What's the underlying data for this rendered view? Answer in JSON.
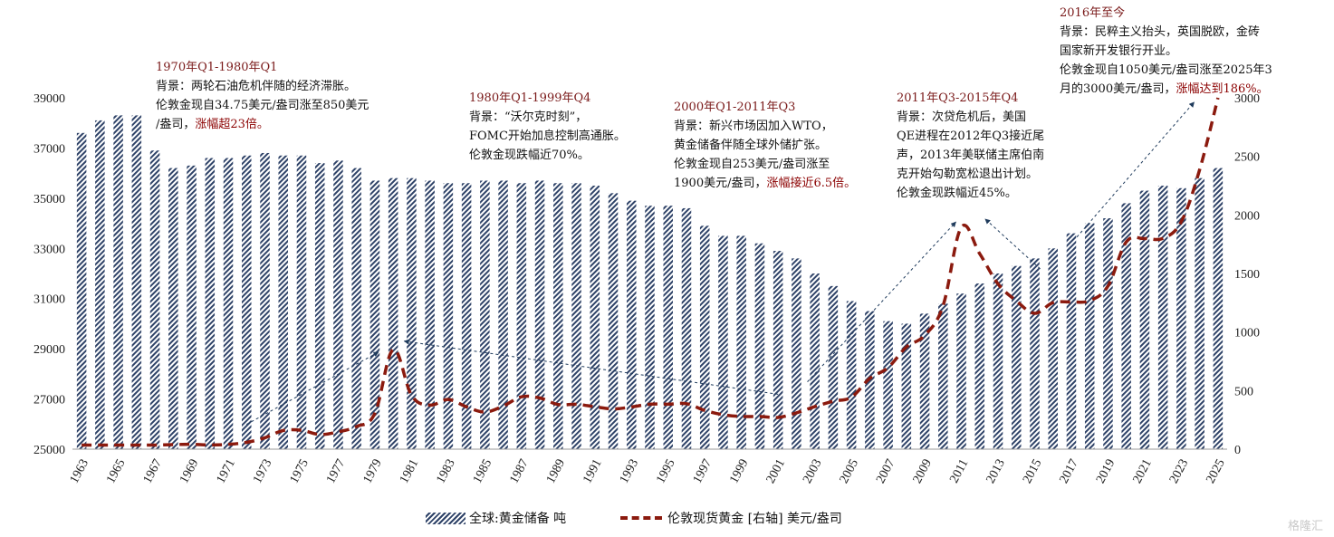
{
  "chart_data": {
    "type": "bar+line",
    "categories": [
      1963,
      1964,
      1965,
      1966,
      1967,
      1968,
      1969,
      1970,
      1971,
      1972,
      1973,
      1974,
      1975,
      1976,
      1977,
      1978,
      1979,
      1980,
      1981,
      1982,
      1983,
      1984,
      1985,
      1986,
      1987,
      1988,
      1989,
      1990,
      1991,
      1992,
      1993,
      1994,
      1995,
      1996,
      1997,
      1998,
      1999,
      2000,
      2001,
      2002,
      2003,
      2004,
      2005,
      2006,
      2007,
      2008,
      2009,
      2010,
      2011,
      2012,
      2013,
      2014,
      2015,
      2016,
      2017,
      2018,
      2019,
      2020,
      2021,
      2022,
      2023,
      2024,
      2025
    ],
    "x_tick_labels": [
      "1963",
      "1965",
      "1967",
      "1969",
      "1971",
      "1973",
      "1975",
      "1977",
      "1979",
      "1981",
      "1983",
      "1985",
      "1987",
      "1989",
      "1991",
      "1993",
      "1995",
      "1997",
      "1999",
      "2001",
      "2003",
      "2005",
      "2007",
      "2009",
      "2011",
      "2013",
      "2015",
      "2017",
      "2019",
      "2021",
      "2023",
      "2025"
    ],
    "left_axis": {
      "ylim": [
        25000,
        39000
      ],
      "ticks": [
        25000,
        27000,
        29000,
        31000,
        33000,
        35000,
        37000,
        39000
      ]
    },
    "right_axis": {
      "ylim": [
        0,
        3000
      ],
      "ticks": [
        0,
        500,
        1000,
        1500,
        2000,
        2500,
        3000
      ]
    },
    "series": [
      {
        "name": "全球:黄金储备 吨",
        "axis": "left",
        "style": "hatched-bar",
        "color": "#2f4368",
        "values": [
          37600,
          38100,
          38300,
          38300,
          36900,
          36200,
          36300,
          36600,
          36600,
          36700,
          36800,
          36700,
          36700,
          36400,
          36500,
          36200,
          35700,
          35800,
          35800,
          35700,
          35600,
          35600,
          35700,
          35700,
          35600,
          35700,
          35600,
          35600,
          35500,
          35200,
          34900,
          34700,
          34700,
          34600,
          33900,
          33500,
          33500,
          33200,
          32900,
          32600,
          32000,
          31500,
          30900,
          30500,
          30100,
          30000,
          30400,
          30800,
          31200,
          31600,
          32000,
          32300,
          32600,
          33000,
          33600,
          34000,
          34200,
          34800,
          35300,
          35500,
          35400,
          35800,
          36200
        ]
      },
      {
        "name": "伦敦现货黄金 [右轴] 美元/盎司",
        "axis": "right",
        "style": "dashed-line",
        "color": "#8b1a0e",
        "values": [
          35,
          35,
          35,
          35,
          35,
          39,
          41,
          36,
          41,
          58,
          97,
          159,
          161,
          125,
          148,
          193,
          306,
          850,
          460,
          376,
          424,
          361,
          317,
          368,
          447,
          437,
          381,
          383,
          362,
          344,
          360,
          384,
          384,
          388,
          331,
          294,
          279,
          279,
          271,
          310,
          363,
          409,
          444,
          604,
          696,
          872,
          972,
          1225,
          1895,
          1669,
          1411,
          1266,
          1160,
          1251,
          1257,
          1268,
          1393,
          1770,
          1798,
          1800,
          1943,
          2386,
          3000
        ]
      }
    ],
    "arrows": [
      {
        "from": [
          1972.0,
          212
        ],
        "to": [
          1979.2,
          829
        ]
      },
      {
        "from": [
          2001.0,
          469
        ],
        "to": [
          1980.6,
          922
        ]
      },
      {
        "from": [
          2002.6,
          575
        ],
        "to": [
          2010.7,
          1940
        ]
      },
      {
        "from": [
          2015.3,
          1540
        ],
        "to": [
          2012.3,
          1965
        ]
      },
      {
        "from": [
          2017.3,
          1811
        ],
        "to": [
          2023.7,
          2963
        ]
      }
    ]
  },
  "annotations": [
    {
      "title": "1970年Q1-1980年Q1",
      "lines": [
        [
          {
            "t": "背景：两轮石油危机伴随的经济滞胀。"
          }
        ],
        [
          {
            "t": "伦敦金现自34.75美元/盎司涨至850美元"
          }
        ],
        [
          {
            "t": "/盎司，"
          },
          {
            "t": "涨幅超23倍。",
            "hl": true
          }
        ]
      ]
    },
    {
      "title": "1980年Q1-1999年Q4",
      "lines": [
        [
          {
            "t": "背景：“沃尔克时刻”，"
          }
        ],
        [
          {
            "t": "FOMC开始加息控制高通胀。"
          }
        ],
        [
          {
            "t": "伦敦金现跌幅近70%。"
          }
        ]
      ]
    },
    {
      "title": "2000年Q1-2011年Q3",
      "lines": [
        [
          {
            "t": "背景：新兴市场因加入WTO，"
          }
        ],
        [
          {
            "t": "黄金储备伴随全球外储扩张。"
          }
        ],
        [
          {
            "t": "伦敦金现自253美元/盎司涨至"
          }
        ],
        [
          {
            "t": "1900美元/盎司，"
          },
          {
            "t": "涨幅接近6.5倍。",
            "hl": true
          }
        ]
      ]
    },
    {
      "title": "2011年Q3-2015年Q4",
      "lines": [
        [
          {
            "t": "背景：次贷危机后，美国"
          }
        ],
        [
          {
            "t": "QE进程在2012年Q3接近尾"
          }
        ],
        [
          {
            "t": "声，2013年美联储主席伯南"
          }
        ],
        [
          {
            "t": "克开始勾勒宽松退出计划。"
          }
        ],
        [
          {
            "t": "伦敦金现跌幅近45%。"
          }
        ]
      ]
    },
    {
      "title": "2016年至今",
      "lines": [
        [
          {
            "t": "背景：民粹主义抬头，英国脱欧，金砖"
          }
        ],
        [
          {
            "t": "国家新开发银行开业。"
          }
        ],
        [
          {
            "t": "伦敦金现自1050美元/盎司涨至2025年3"
          }
        ],
        [
          {
            "t": "月的3000美元/盎司，"
          },
          {
            "t": "涨幅达到186%。",
            "hl": true
          }
        ]
      ]
    }
  ],
  "legend": {
    "bar_label": "全球:黄金储备 吨",
    "line_label": "伦敦现货黄金 [右轴] 美元/盎司"
  },
  "watermark": "格隆汇"
}
